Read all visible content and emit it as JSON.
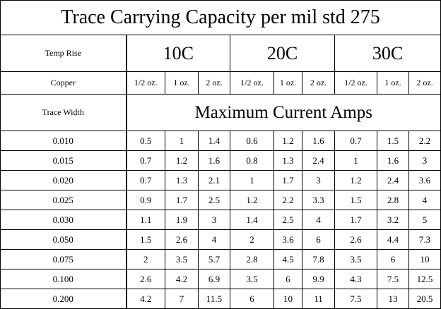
{
  "title": "Trace Carrying Capacity per mil std 275",
  "temp_rise_label": "Temp Rise",
  "temps": [
    "10C",
    "20C",
    "30C"
  ],
  "copper_label": "Copper",
  "copper_weights": [
    "1/2 oz.",
    "1 oz.",
    "2 oz.",
    "1/2 oz.",
    "1 oz.",
    "2 oz.",
    "1/2 oz.",
    "1 oz.",
    "2 oz."
  ],
  "trace_width_label": "Trace Width",
  "subtitle": "Maximum Current Amps",
  "rows": [
    {
      "trace_width": "0.010",
      "amps": [
        0.5,
        1,
        1.4,
        0.6,
        1.2,
        1.6,
        0.7,
        1.5,
        2.2
      ]
    },
    {
      "trace_width": "0.015",
      "amps": [
        0.7,
        1.2,
        1.6,
        0.8,
        1.3,
        2.4,
        1,
        1.6,
        3
      ]
    },
    {
      "trace_width": "0.020",
      "amps": [
        0.7,
        1.3,
        2.1,
        1,
        1.7,
        3,
        1.2,
        2.4,
        3.6
      ]
    },
    {
      "trace_width": "0.025",
      "amps": [
        0.9,
        1.7,
        2.5,
        1.2,
        2.2,
        3.3,
        1.5,
        2.8,
        4
      ]
    },
    {
      "trace_width": "0.030",
      "amps": [
        1.1,
        1.9,
        3,
        1.4,
        2.5,
        4,
        1.7,
        3.2,
        5
      ]
    },
    {
      "trace_width": "0.050",
      "amps": [
        1.5,
        2.6,
        4,
        2,
        3.6,
        6,
        2.6,
        4.4,
        7.3
      ]
    },
    {
      "trace_width": "0.075",
      "amps": [
        2,
        3.5,
        5.7,
        2.8,
        4.5,
        7.8,
        3.5,
        6,
        10
      ]
    },
    {
      "trace_width": "0.100",
      "amps": [
        2.6,
        4.2,
        6.9,
        3.5,
        6,
        9.9,
        4.3,
        7.5,
        12.5
      ]
    },
    {
      "trace_width": "0.200",
      "amps": [
        4.2,
        7,
        11.5,
        6,
        10,
        11,
        7.5,
        13,
        20.5
      ]
    }
  ]
}
